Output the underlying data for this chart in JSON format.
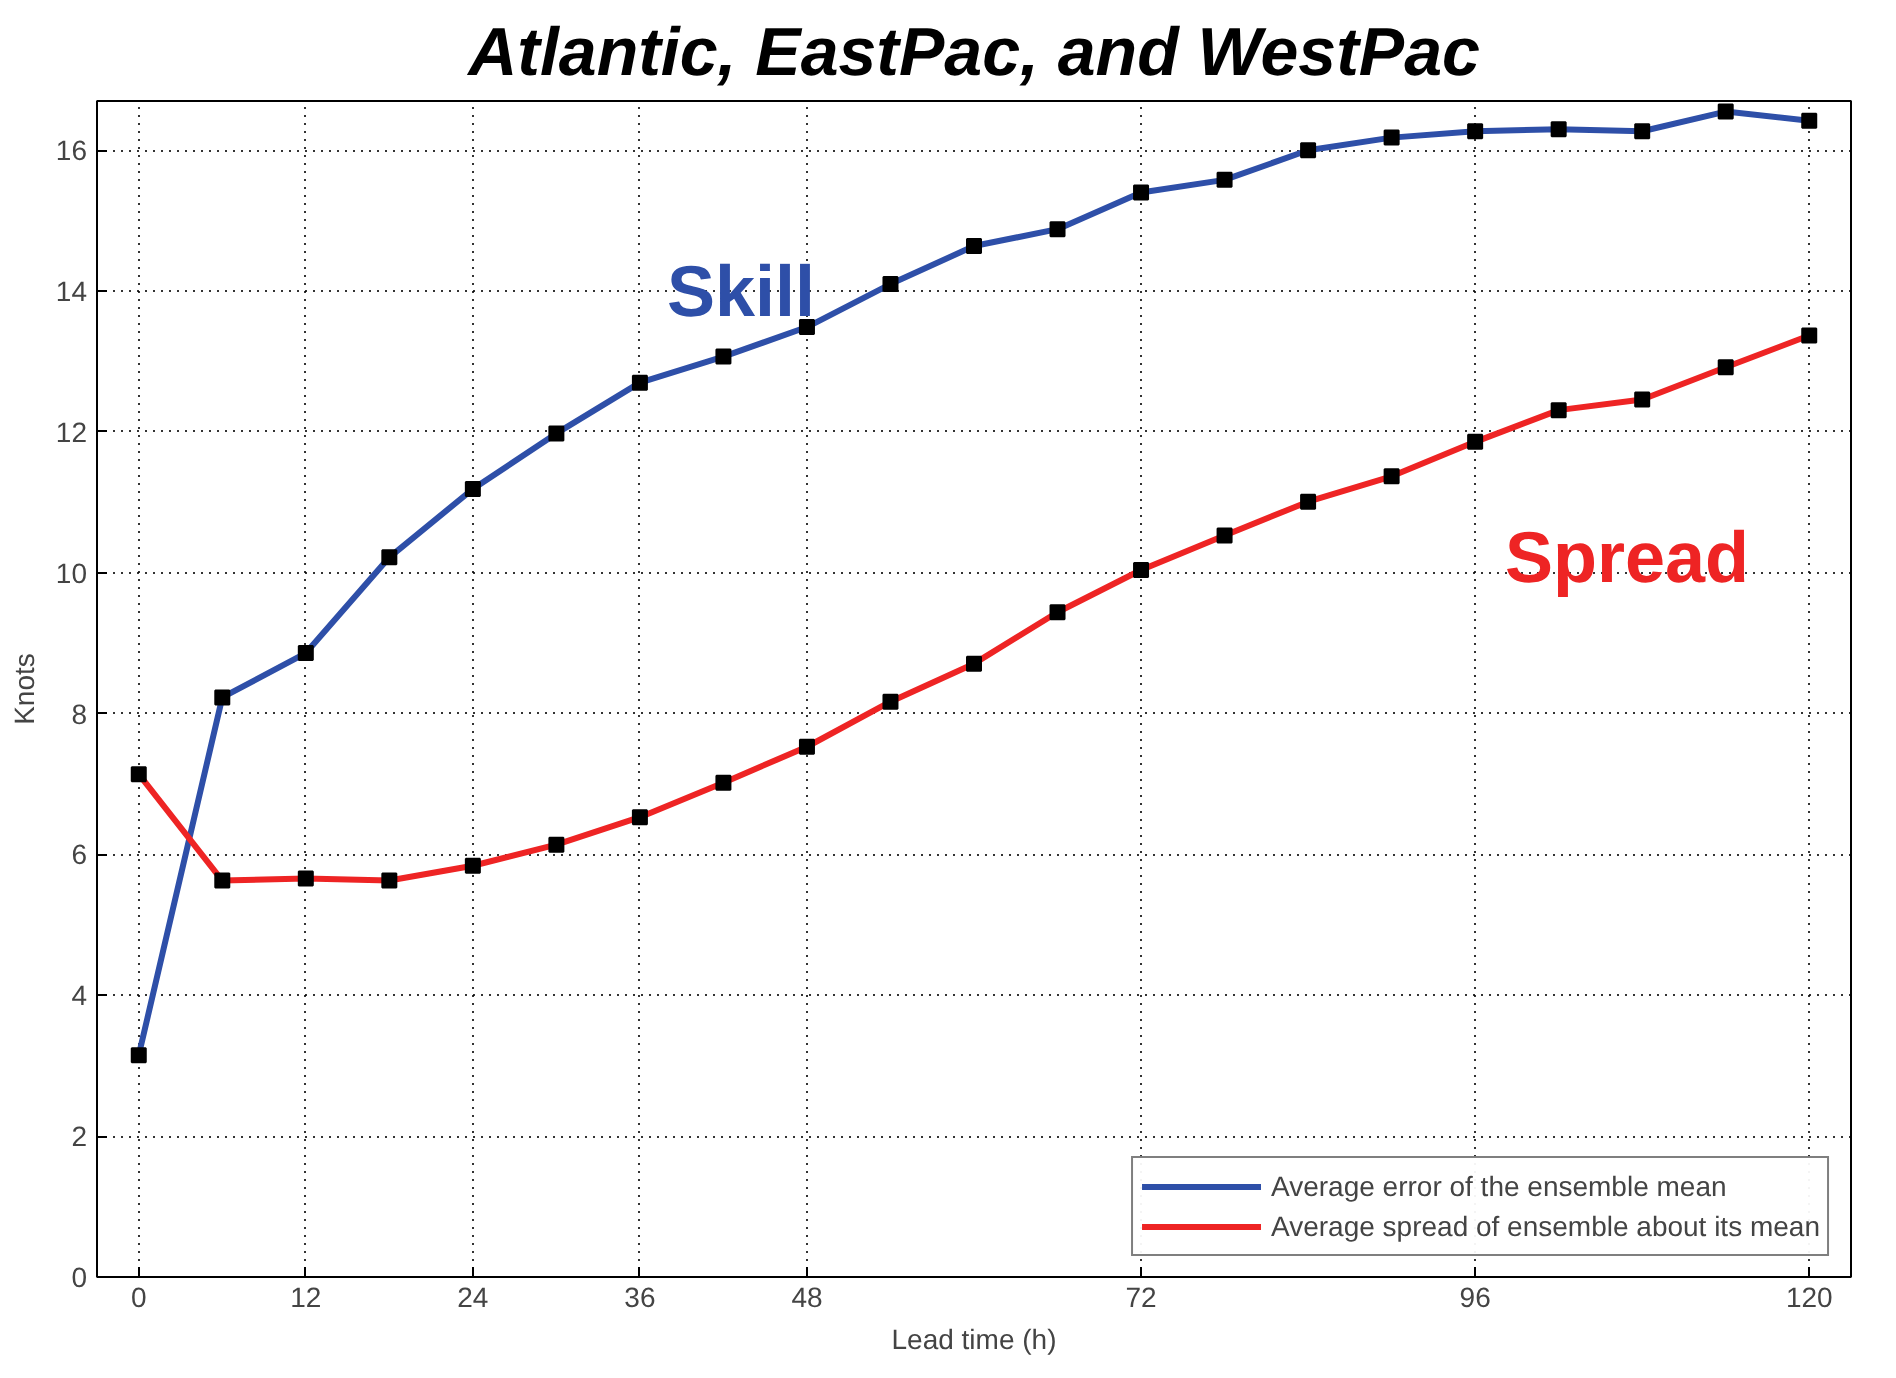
{
  "chart_data": {
    "type": "line",
    "title": "Atlantic, EastPac, and WestPac",
    "xlabel": "Lead time (h)",
    "ylabel": "Knots",
    "x": [
      0,
      6,
      12,
      18,
      24,
      30,
      36,
      42,
      48,
      54,
      60,
      66,
      72,
      78,
      84,
      90,
      96,
      102,
      108,
      114,
      120
    ],
    "series": [
      {
        "name": "Average error of the ensemble mean",
        "color": "#2e4fa8",
        "values": [
          3.15,
          8.23,
          8.86,
          10.22,
          11.19,
          11.98,
          12.7,
          13.07,
          13.49,
          14.1,
          14.64,
          14.88,
          15.4,
          15.58,
          16.0,
          16.18,
          16.27,
          16.3,
          16.27,
          16.55,
          16.42
        ]
      },
      {
        "name": "Average spread of ensemble about its mean",
        "color": "#ee2424",
        "values": [
          7.14,
          5.63,
          5.66,
          5.63,
          5.84,
          6.14,
          6.53,
          7.02,
          7.53,
          8.17,
          8.71,
          9.44,
          10.04,
          10.53,
          11.01,
          11.37,
          11.86,
          12.31,
          12.46,
          12.92,
          13.37
        ]
      }
    ],
    "annotations": [
      "Skill",
      "Spread"
    ],
    "xlim": [
      -3,
      123
    ],
    "ylim": [
      0,
      16.7
    ],
    "xticks": [
      0,
      12,
      24,
      36,
      48,
      72,
      96,
      120
    ],
    "yticks": [
      0,
      2,
      4,
      6,
      8,
      10,
      12,
      14,
      16
    ],
    "grid": true,
    "legend": "bottom right",
    "marker": "square",
    "line_style": "solid"
  }
}
